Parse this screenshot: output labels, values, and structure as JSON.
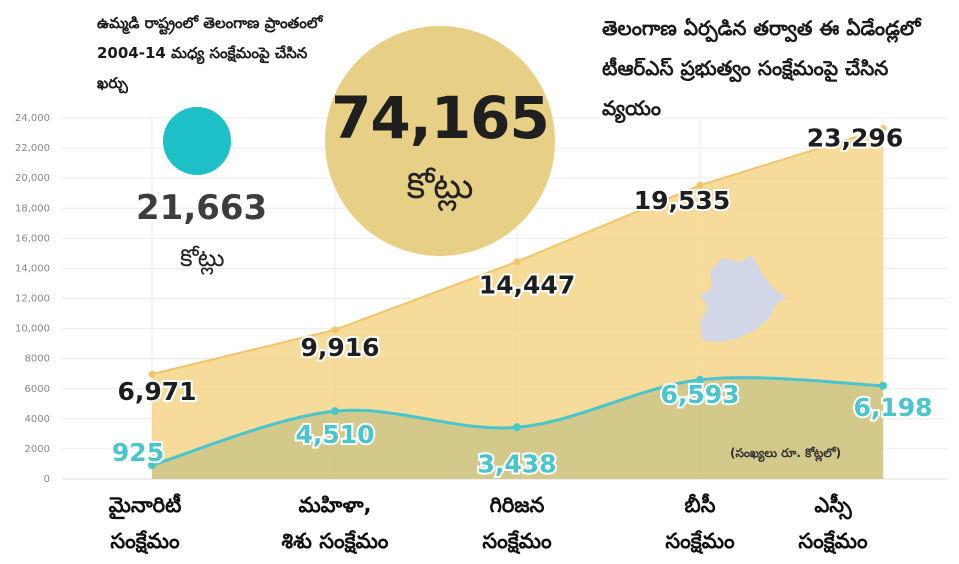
{
  "note_left": "ఉమ్మడి రాష్ట్రంలో తెలంగాణ ప్రాంతంలో 2004-14 మధ్య సంక్షేమంపై చేసిన ఖర్చు",
  "left_amount": "21,663",
  "left_unit": "కోట్లు",
  "note_right": "తెలంగాణ ఏర్పడిన తర్వాత ఈ ఏడేండ్లలో టీఆర్ఎస్ ప్రభుత్వం సంక్షేమంపై చేసిన వ్యయం",
  "big_amount": "74,165",
  "big_unit": "కోట్లు",
  "units_note": "(సంఖ్యలు రూ. కోట్లలో)",
  "colors": {
    "teal": "#1ec0c7",
    "gold": "#e7cf86",
    "area_top": "#f5d58a",
    "area_bottom": "#cfc689",
    "line_bottom": "#49c5cc"
  },
  "chart_data": {
    "type": "area",
    "categories": [
      "మైనారిటీ సంక్షేమం",
      "మహిళా, శిశు సంక్షేమం",
      "గిరిజన సంక్షేమం",
      "బీసీ సంక్షేమం",
      "ఎస్సీ సంక్షేమం"
    ],
    "category_lines": [
      [
        "మైనారిటీ",
        "సంక్షేమం"
      ],
      [
        "మహిళా,",
        "శిశు సంక్షేమం"
      ],
      [
        "గిరిజన",
        "సంక్షేమం"
      ],
      [
        "బీసీ",
        "సంక్షేమం"
      ],
      [
        "ఎస్సీ",
        "సంక్షేమం"
      ]
    ],
    "series": [
      {
        "values": [
          6971,
          9916,
          14447,
          19535,
          23296
        ],
        "labels": [
          "6,971",
          "9,916",
          "14,447",
          "19,535",
          "23,296"
        ]
      },
      {
        "values": [
          925,
          4510,
          3438,
          6593,
          6198
        ],
        "labels": [
          "925",
          "4,510",
          "3,438",
          "6,593",
          "6,198"
        ]
      }
    ],
    "ylim": [
      0,
      24000
    ],
    "yticks": [
      0,
      2000,
      4000,
      6000,
      8000,
      10000,
      12000,
      14000,
      16000,
      18000,
      20000,
      22000,
      24000
    ],
    "ytick_labels": [
      "0",
      "2000",
      "4000",
      "6000",
      "8000",
      "10,000",
      "12,000",
      "14,000",
      "16,000",
      "18,000",
      "20,000",
      "22,000",
      "24,000"
    ],
    "grid": true
  }
}
